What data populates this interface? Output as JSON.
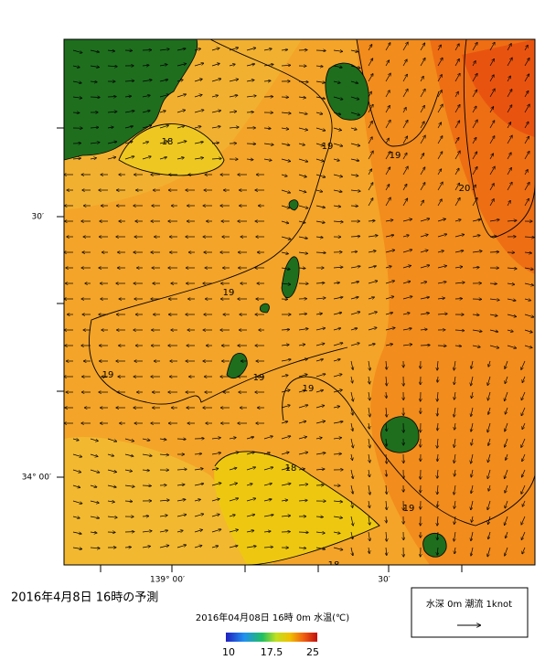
{
  "map": {
    "latitude_labels": [
      "30′",
      "34° 00′"
    ],
    "longitude_labels": [
      "139° 00′",
      "30′"
    ],
    "contour_labels": [
      "18",
      "19",
      "19",
      "20",
      "19",
      "19",
      "19",
      "19",
      "18",
      "19",
      "18"
    ]
  },
  "caption": {
    "title": "2016年4月8日 16時の予測",
    "subtitle": "2016年04月08日 16時 0m 水温(℃)"
  },
  "colorbar": {
    "labels": [
      "10",
      "17.5",
      "25"
    ]
  },
  "legend": {
    "text": "水深 0m 潮流 1knot"
  }
}
